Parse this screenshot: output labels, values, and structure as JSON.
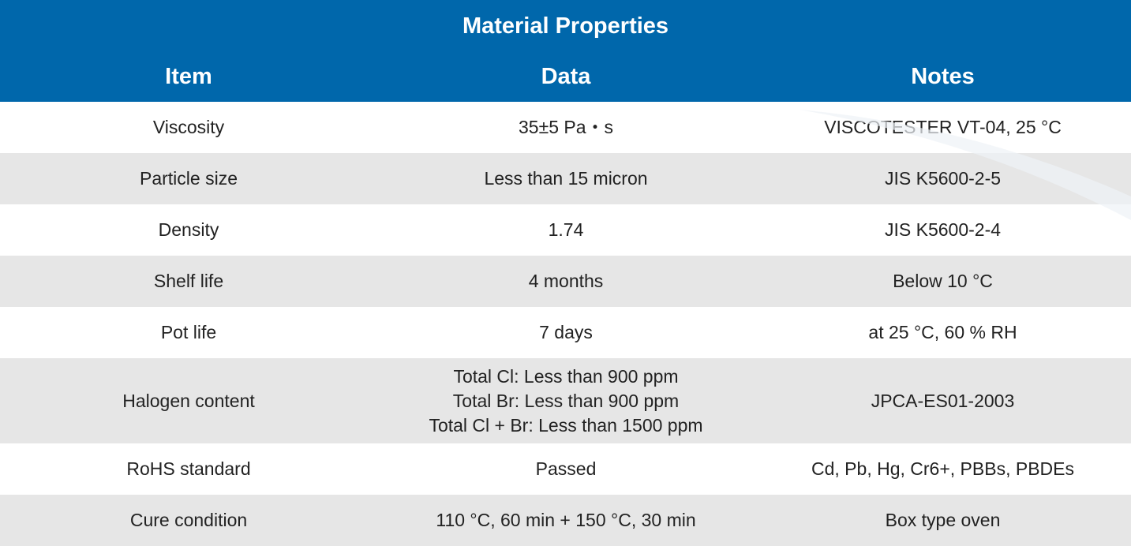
{
  "title": "Material Properties",
  "columns": [
    "Item",
    "Data",
    "Notes"
  ],
  "rows": [
    {
      "item": "Viscosity",
      "data": [
        "35±5 Pa・s"
      ],
      "notes": "VISCOTESTER VT-04, 25 °C"
    },
    {
      "item": "Particle size",
      "data": [
        "Less than 15 micron"
      ],
      "notes": "JIS K5600-2-5"
    },
    {
      "item": "Density",
      "data": [
        "1.74"
      ],
      "notes": "JIS K5600-2-4"
    },
    {
      "item": "Shelf life",
      "data": [
        "4 months"
      ],
      "notes": "Below 10 °C"
    },
    {
      "item": "Pot life",
      "data": [
        "7 days"
      ],
      "notes": "at 25 °C, 60 % RH"
    },
    {
      "item": "Halogen content",
      "data": [
        "Total Cl: Less than 900 ppm",
        "Total Br: Less than 900 ppm",
        "Total Cl + Br: Less than 1500 ppm"
      ],
      "notes": "JPCA-ES01-2003"
    },
    {
      "item": "RoHS standard",
      "data": [
        "Passed"
      ],
      "notes": "Cd, Pb, Hg, Cr6+, PBBs, PBDEs"
    },
    {
      "item": "Cure condition",
      "data": [
        "110 °C, 60 min + 150 °C, 30 min"
      ],
      "notes": "Box type oven"
    }
  ],
  "colors": {
    "header_bg": "#0067ab",
    "row_alt_bg": "#e6e6e6"
  }
}
